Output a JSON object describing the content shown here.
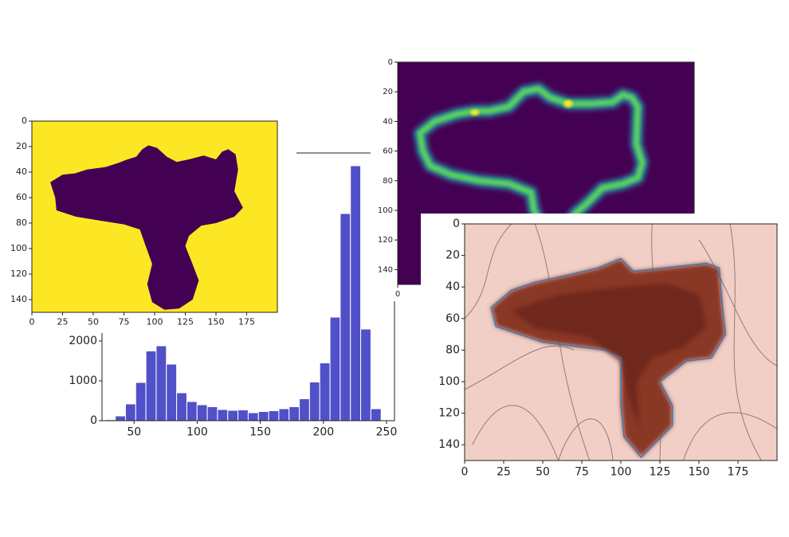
{
  "chart_data": [
    {
      "type": "histogram",
      "bins": [
        27,
        35.1,
        43.2,
        51.3,
        59.4,
        67.5,
        75.6,
        83.7,
        91.8,
        99.9,
        108,
        116.1,
        124.2,
        132.3,
        140.4,
        148.5,
        156.6,
        164.7,
        172.8,
        180.9,
        189,
        197.1,
        205.2,
        213.3,
        221.4,
        229.5,
        237.6,
        245.7
      ],
      "values": [
        25,
        120,
        420,
        960,
        1750,
        1880,
        1420,
        700,
        480,
        400,
        350,
        280,
        260,
        270,
        200,
        230,
        250,
        300,
        350,
        550,
        970,
        1450,
        2600,
        5200,
        6400,
        2300,
        300
      ],
      "color": "#5050c8",
      "xlim": [
        24.6,
        256.3
      ],
      "xticks": [
        50,
        100,
        150,
        200,
        250
      ],
      "ylim": [
        0,
        6720
      ],
      "yticks": [
        0,
        1000,
        2000
      ]
    },
    {
      "type": "image",
      "xlim": [
        0,
        200
      ],
      "ylim": [
        150,
        0
      ],
      "xticks": [
        0,
        25,
        50,
        75,
        100,
        125,
        150,
        175
      ],
      "yticks": [
        0,
        20,
        40,
        60,
        80,
        100,
        120,
        140
      ]
    },
    {
      "type": "image",
      "xlim": [
        0,
        200
      ],
      "ylim": [
        150,
        0
      ],
      "xticks": [
        0
      ],
      "yticks": [
        0,
        20,
        40,
        60,
        80,
        100,
        120,
        140
      ]
    },
    {
      "type": "image",
      "xlim": [
        0,
        200
      ],
      "ylim": [
        150,
        0
      ],
      "xticks": [
        0,
        25,
        50,
        75,
        100,
        125,
        150,
        175
      ],
      "yticks": [
        0,
        20,
        40,
        60,
        80,
        100,
        120,
        140
      ]
    }
  ]
}
